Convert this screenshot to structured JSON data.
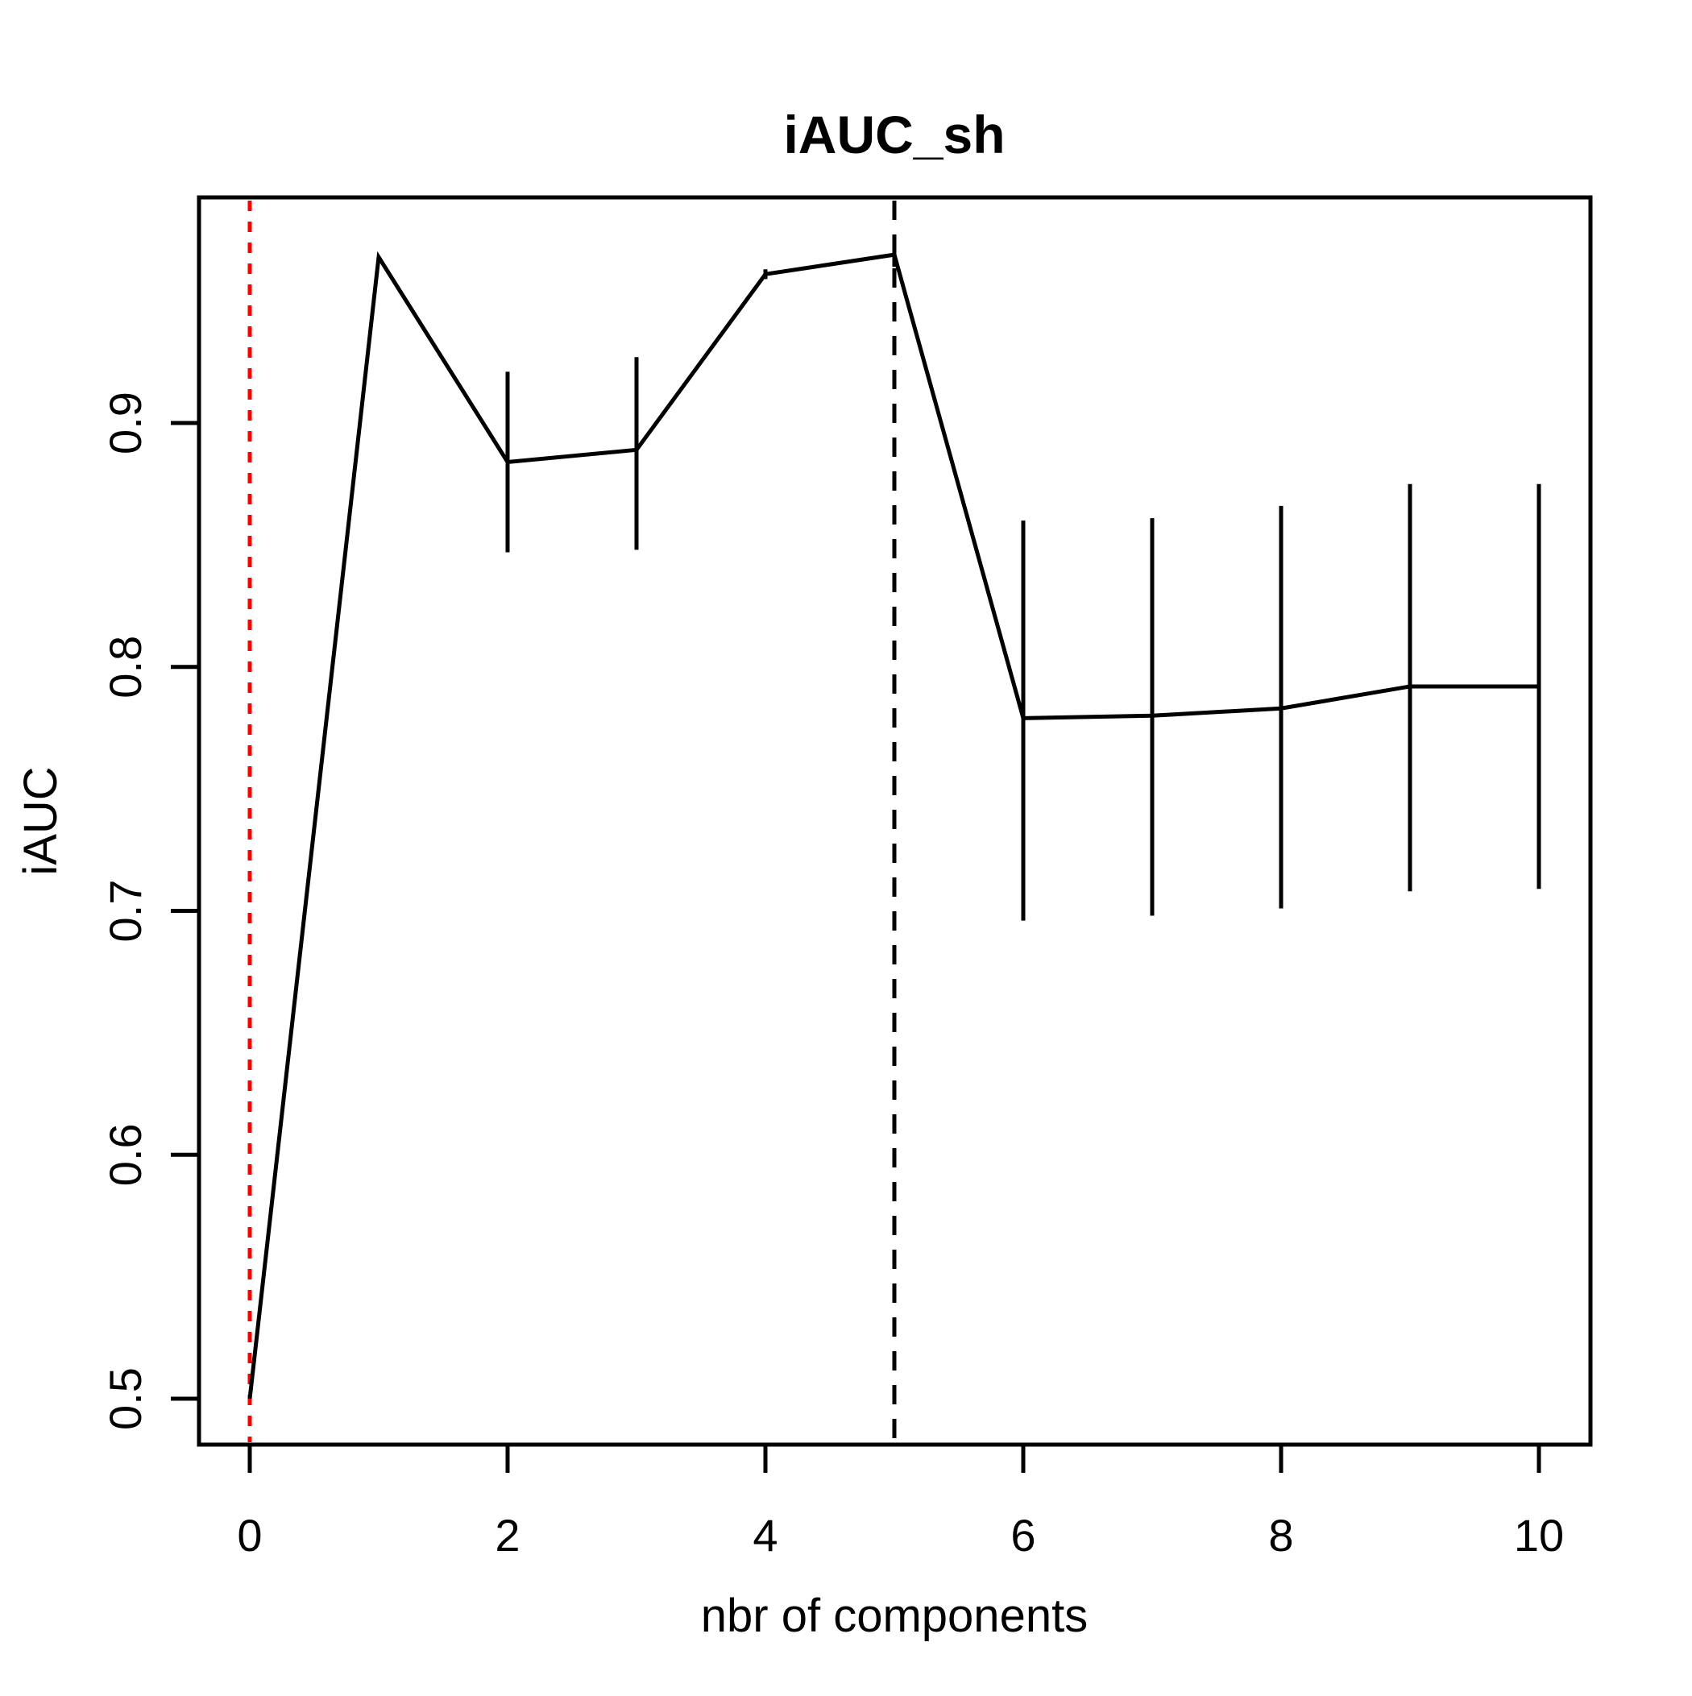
{
  "chart_data": {
    "type": "line",
    "title": "iAUC_sh",
    "xlabel": "nbr of components",
    "ylabel": "iAUC",
    "x": [
      0,
      1,
      2,
      3,
      4,
      5,
      6,
      7,
      8,
      9,
      10
    ],
    "y": [
      0.5,
      0.968,
      0.884,
      0.889,
      0.961,
      0.969,
      0.779,
      0.78,
      0.783,
      0.792,
      0.792
    ],
    "error_bars": [
      {
        "x": 2,
        "low": 0.847,
        "high": 0.921
      },
      {
        "x": 3,
        "low": 0.848,
        "high": 0.927
      },
      {
        "x": 4,
        "low": 0.959,
        "high": 0.963
      },
      {
        "x": 5,
        "low": 0.964,
        "high": 0.97
      },
      {
        "x": 6,
        "low": 0.696,
        "high": 0.86
      },
      {
        "x": 7,
        "low": 0.698,
        "high": 0.861
      },
      {
        "x": 8,
        "low": 0.701,
        "high": 0.866
      },
      {
        "x": 9,
        "low": 0.708,
        "high": 0.875
      },
      {
        "x": 10,
        "low": 0.709,
        "high": 0.875
      }
    ],
    "x_ticks": [
      0,
      2,
      4,
      6,
      8,
      10
    ],
    "y_ticks": [
      0.5,
      0.6,
      0.7,
      0.8,
      0.9
    ],
    "x_tick_labels": [
      "0",
      "2",
      "4",
      "6",
      "8",
      "10"
    ],
    "y_tick_labels": [
      "0.5",
      "0.6",
      "0.7",
      "0.8",
      "0.9"
    ],
    "xlim": [
      -0.39,
      10.4
    ],
    "ylim": [
      0.481,
      0.992
    ],
    "grid": false,
    "legend": null,
    "line_color": "#000000",
    "reference_lines": [
      {
        "x": 0,
        "color": "#ff0000",
        "style": "dotted"
      },
      {
        "x": 5,
        "color": "#000000",
        "style": "dashed"
      }
    ]
  }
}
